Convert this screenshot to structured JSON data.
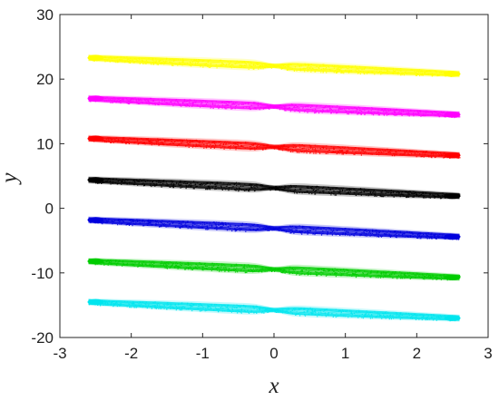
{
  "chart_data": {
    "type": "scatter",
    "title": "",
    "xlabel": "x",
    "ylabel": "y",
    "xlim": [
      -3,
      3
    ],
    "ylim": [
      -20,
      30
    ],
    "xticks": [
      -3,
      -2,
      -1,
      0,
      1,
      2,
      3
    ],
    "yticks": [
      -20,
      -10,
      0,
      10,
      20,
      30
    ],
    "xtick_labels": [
      "-3",
      "-2",
      "-1",
      "0",
      "1",
      "2",
      "3"
    ],
    "ytick_labels": [
      "-20",
      "-10",
      "0",
      "10",
      "20",
      "30"
    ],
    "grid": false,
    "legend": "none",
    "x_range": [
      -2.6,
      2.6
    ],
    "series": [
      {
        "color": "#ffff00",
        "y_start": 23.3,
        "y_end": 20.8,
        "y_mid": 22.0
      },
      {
        "color": "#ff00ff",
        "y_start": 17.0,
        "y_end": 14.5,
        "y_mid": 15.7
      },
      {
        "color": "#ff0000",
        "y_start": 10.8,
        "y_end": 8.2,
        "y_mid": 9.5
      },
      {
        "color": "#000000",
        "y_start": 4.4,
        "y_end": 1.9,
        "y_mid": 3.1
      },
      {
        "color": "#0000dd",
        "y_start": -1.8,
        "y_end": -4.4,
        "y_mid": -3.1
      },
      {
        "color": "#00cc00",
        "y_start": -8.2,
        "y_end": -10.7,
        "y_mid": -9.5
      },
      {
        "color": "#00e5ee",
        "y_start": -14.5,
        "y_end": -17.0,
        "y_mid": -15.8
      }
    ]
  }
}
